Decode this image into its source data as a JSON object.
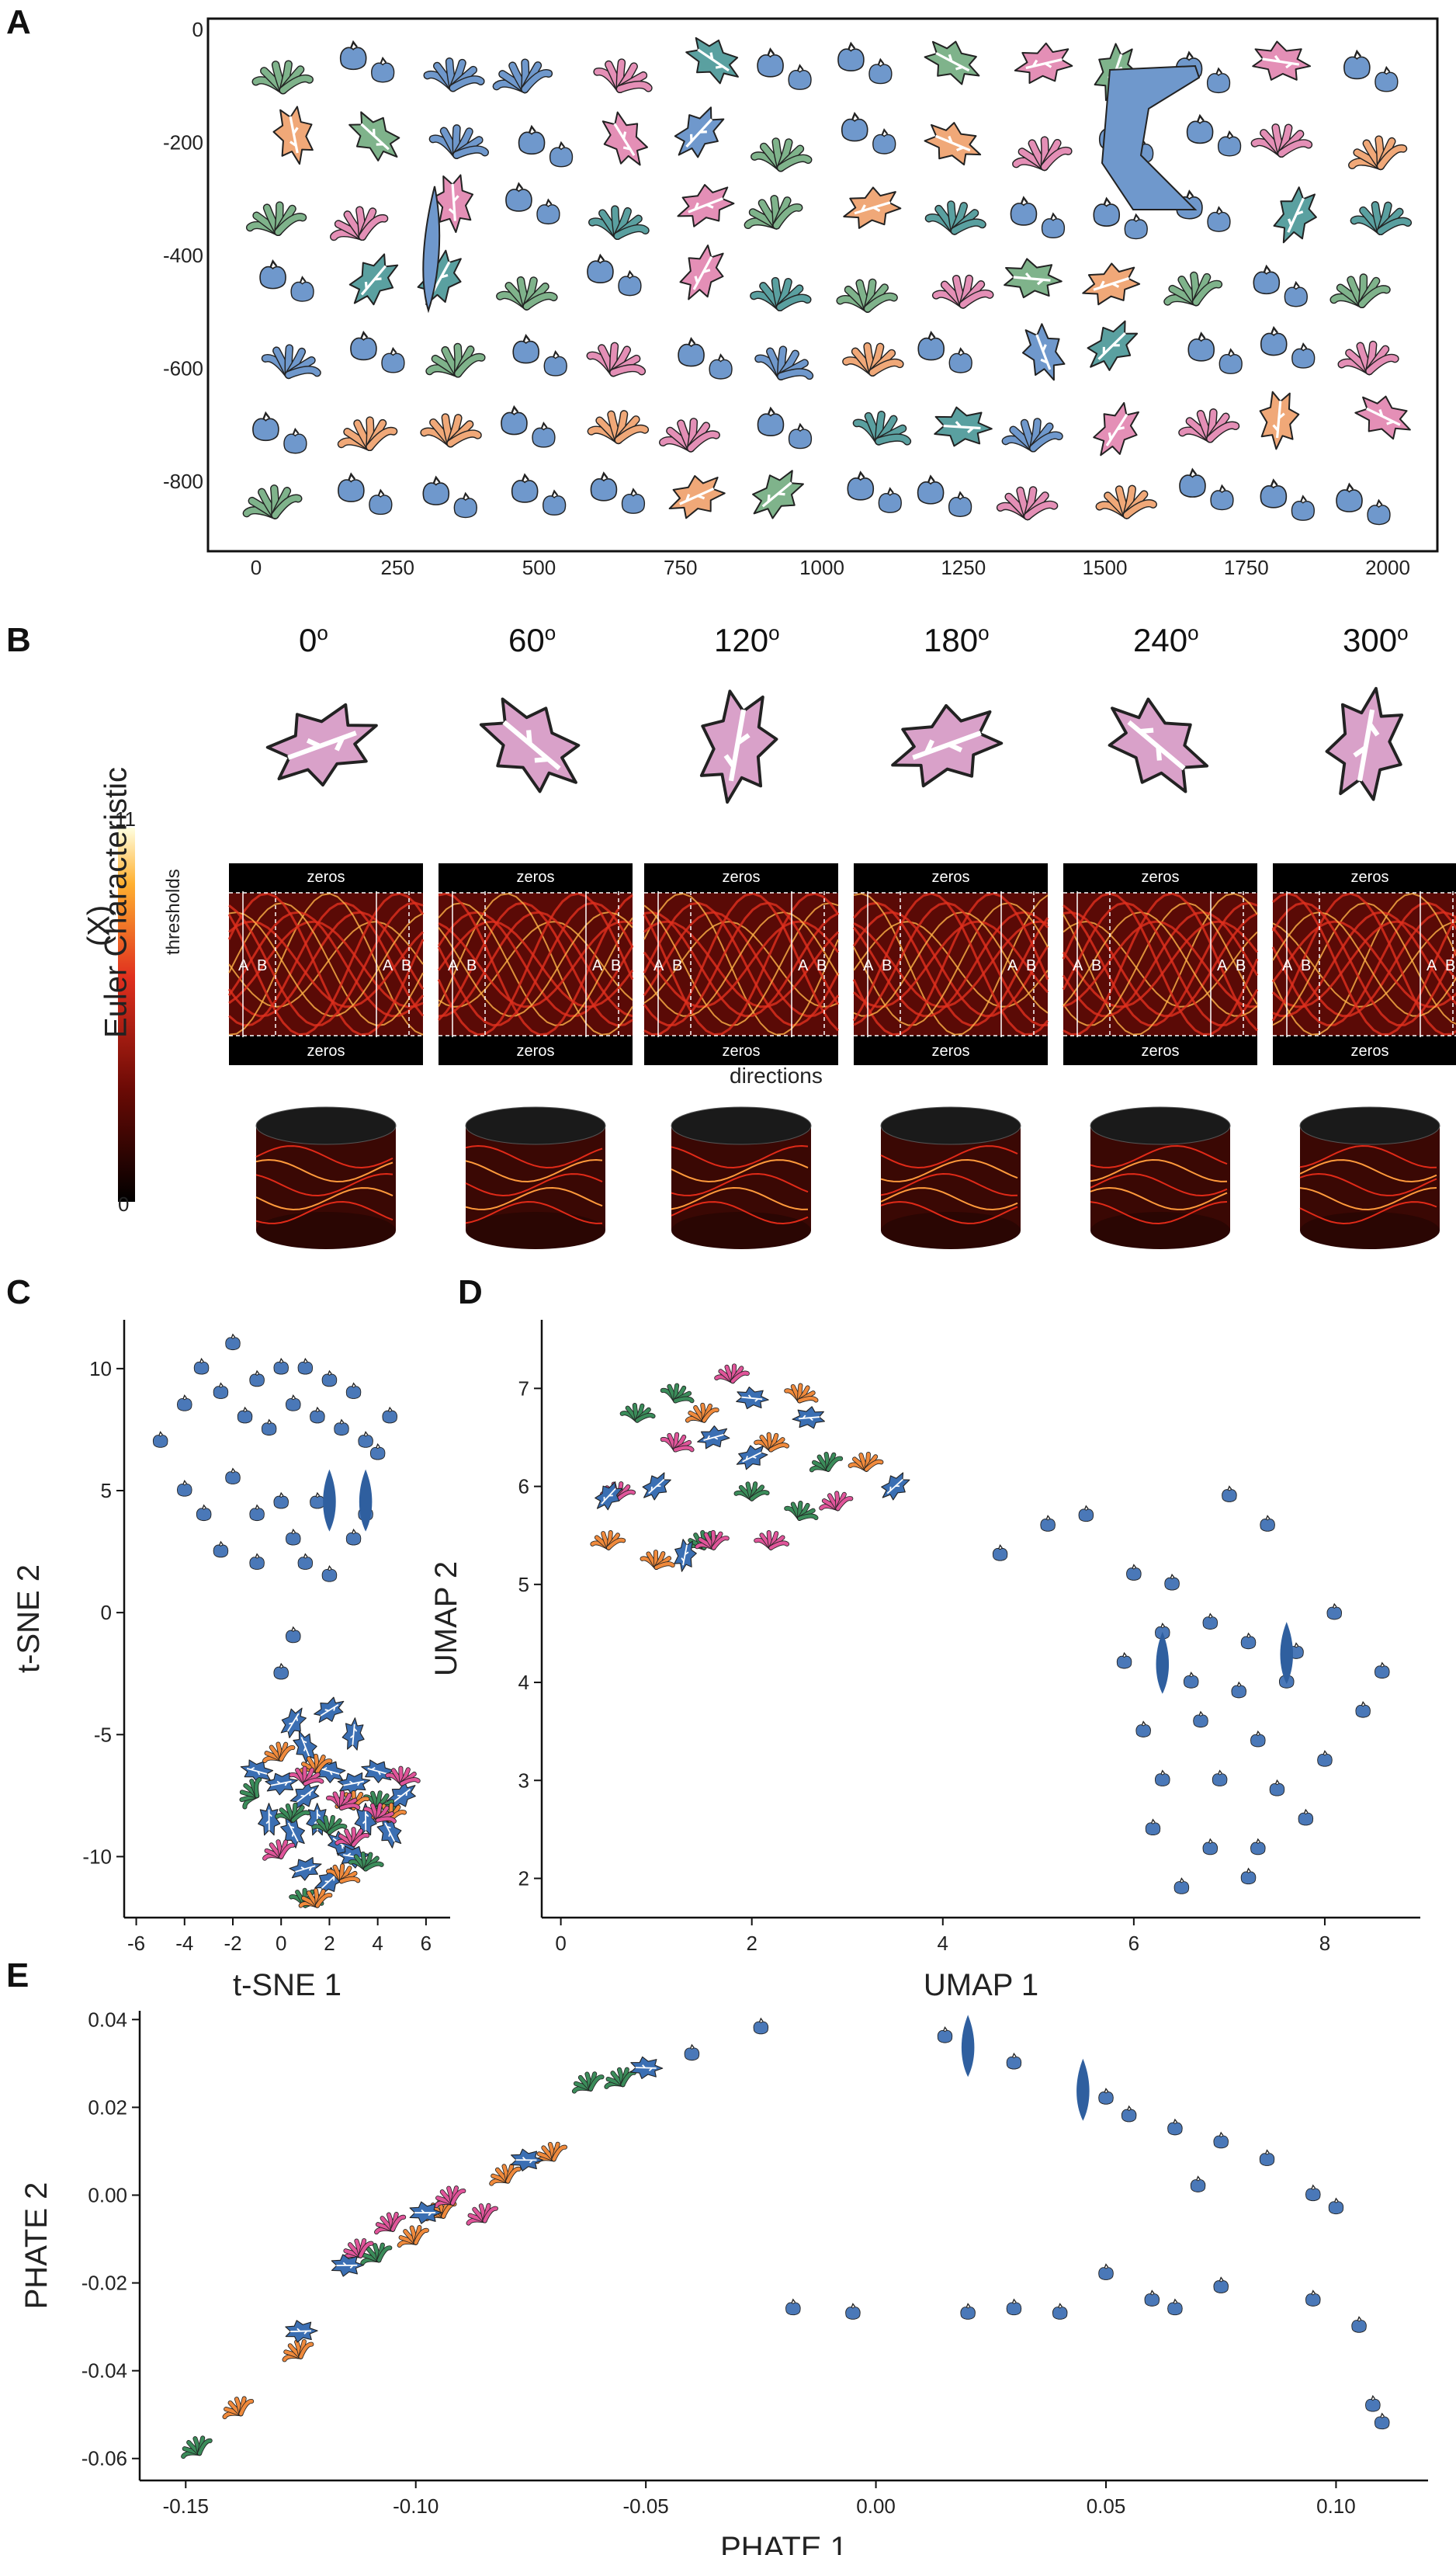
{
  "panels": {
    "a": {
      "letter": "A"
    },
    "b": {
      "letter": "B"
    },
    "c": {
      "letter": "C"
    },
    "d": {
      "letter": "D"
    },
    "e": {
      "letter": "E"
    }
  },
  "panel_a": {
    "x_ticks": [
      "0",
      "250",
      "500",
      "750",
      "1000",
      "1250",
      "1500",
      "1750",
      "2000"
    ],
    "y_ticks": [
      "0",
      "-200",
      "-400",
      "-600",
      "-800"
    ]
  },
  "panel_b": {
    "angles": [
      "0",
      "60",
      "120",
      "180",
      "240",
      "300"
    ],
    "degree_symbol": "o",
    "colorbar_label": "Euler Characteristic",
    "colorbar_sublabel": "(X)",
    "colorbar_max": "11",
    "colorbar_min": "0",
    "thresholds_label": "thresholds",
    "directions_label": "directions",
    "zeros_label": "zeros",
    "a_label": "A",
    "b_label": "B"
  },
  "chart_data": [
    {
      "type": "scatter",
      "title": "",
      "xlabel": "t-SNE 1",
      "ylabel": "t-SNE 2",
      "xlim": [
        -6.5,
        7
      ],
      "ylim": [
        -12.5,
        12
      ],
      "x_ticks": [
        "-6",
        "-4",
        "-2",
        "0",
        "2",
        "4",
        "6"
      ],
      "y_ticks": [
        "10",
        "5",
        "0",
        "-5",
        "-10"
      ],
      "series": [
        {
          "name": "round leaves",
          "color": "#4a78b8",
          "points": [
            [
              -5,
              7
            ],
            [
              -4,
              8.5
            ],
            [
              -3.3,
              10
            ],
            [
              -2.5,
              9
            ],
            [
              -2,
              11
            ],
            [
              -1.5,
              8
            ],
            [
              -1,
              9.5
            ],
            [
              -0.5,
              7.5
            ],
            [
              0,
              10
            ],
            [
              0.5,
              8.5
            ],
            [
              1,
              10
            ],
            [
              1.5,
              8
            ],
            [
              2,
              9.5
            ],
            [
              2.5,
              7.5
            ],
            [
              3,
              9
            ],
            [
              3.5,
              7
            ],
            [
              4,
              6.5
            ],
            [
              4.5,
              8
            ],
            [
              -4,
              5
            ],
            [
              -3.2,
              4
            ],
            [
              -2,
              5.5
            ],
            [
              -1,
              4
            ],
            [
              0,
              4.5
            ],
            [
              0.5,
              3
            ],
            [
              1.5,
              4.5
            ],
            [
              3,
              3
            ],
            [
              3.5,
              4
            ],
            [
              -1,
              2
            ],
            [
              1,
              2
            ],
            [
              2,
              1.5
            ],
            [
              -2.5,
              2.5
            ],
            [
              0.5,
              -1
            ],
            [
              0,
              -2.5
            ]
          ]
        },
        {
          "name": "elongated leaves",
          "color": "#2f5f9f",
          "points": [
            [
              2,
              4.6
            ],
            [
              3.5,
              4.6
            ]
          ]
        },
        {
          "name": "lobed leaves",
          "color": "#3b6fb3",
          "points": [
            [
              0.5,
              -4.5
            ],
            [
              1,
              -5.5
            ],
            [
              2,
              -4
            ],
            [
              3,
              -5
            ],
            [
              -1,
              -6.5
            ],
            [
              0,
              -7
            ],
            [
              1,
              -7.5
            ],
            [
              2,
              -6.5
            ],
            [
              3,
              -7
            ],
            [
              4,
              -6.5
            ],
            [
              5,
              -7.5
            ],
            [
              -0.5,
              -8.5
            ],
            [
              0.5,
              -9
            ],
            [
              1.5,
              -8.5
            ],
            [
              2.5,
              -9.5
            ],
            [
              3.5,
              -8.5
            ],
            [
              4.5,
              -9
            ],
            [
              1,
              -10.5
            ],
            [
              2,
              -11
            ],
            [
              3,
              -10
            ]
          ]
        },
        {
          "name": "fan leaves (green)",
          "color": "#3b8c5a",
          "points": [
            [
              -1,
              -7
            ],
            [
              0.5,
              -8
            ],
            [
              2,
              -8.5
            ],
            [
              3.5,
              -10
            ],
            [
              1,
              -11.5
            ],
            [
              4,
              -7.5
            ]
          ]
        },
        {
          "name": "fan leaves (orange)",
          "color": "#f08a3c",
          "points": [
            [
              0,
              -5.5
            ],
            [
              1.5,
              -6
            ],
            [
              2.5,
              -10.5
            ],
            [
              3,
              -7.5
            ],
            [
              1.5,
              -11.5
            ],
            [
              4.5,
              -8
            ]
          ]
        },
        {
          "name": "fan leaves (pink)",
          "color": "#e0559a",
          "points": [
            [
              1,
              -6.5
            ],
            [
              2.5,
              -7.5
            ],
            [
              4,
              -8
            ],
            [
              5,
              -6.5
            ],
            [
              0,
              -9.5
            ],
            [
              3,
              -9
            ]
          ]
        }
      ]
    },
    {
      "type": "scatter",
      "title": "",
      "xlabel": "UMAP 1",
      "ylabel": "UMAP 2",
      "xlim": [
        -0.2,
        9
      ],
      "ylim": [
        1.6,
        7.7
      ],
      "x_ticks": [
        "0",
        "2",
        "4",
        "6",
        "8"
      ],
      "y_ticks": [
        "7",
        "6",
        "5",
        "4",
        "3",
        "2"
      ],
      "series": [
        {
          "name": "fan leaves (orange)",
          "color": "#f08a3c",
          "points": [
            [
              0.5,
              5.5
            ],
            [
              1,
              5.3
            ],
            [
              1.5,
              6.8
            ],
            [
              2.2,
              6.5
            ],
            [
              3.2,
              6.3
            ],
            [
              2.5,
              7
            ]
          ]
        },
        {
          "name": "fan leaves (green)",
          "color": "#3b8c5a",
          "points": [
            [
              0.8,
              6.8
            ],
            [
              1.5,
              5.5
            ],
            [
              2,
              6
            ],
            [
              2.8,
              6.3
            ],
            [
              1.2,
              7
            ],
            [
              2.5,
              5.8
            ]
          ]
        },
        {
          "name": "fan leaves (pink)",
          "color": "#e0559a",
          "points": [
            [
              0.6,
              6
            ],
            [
              1.2,
              6.5
            ],
            [
              1.8,
              7.2
            ],
            [
              1.6,
              5.5
            ],
            [
              2.2,
              5.5
            ],
            [
              2.9,
              5.9
            ]
          ]
        },
        {
          "name": "lobed leaves",
          "color": "#3b6fb3",
          "points": [
            [
              0.5,
              5.9
            ],
            [
              1,
              6
            ],
            [
              1.6,
              6.5
            ],
            [
              2,
              6.9
            ],
            [
              2.6,
              6.7
            ],
            [
              3.5,
              6
            ],
            [
              1.3,
              5.3
            ],
            [
              2,
              6.3
            ]
          ]
        },
        {
          "name": "round leaves",
          "color": "#4a78b8",
          "points": [
            [
              4.6,
              5.3
            ],
            [
              5.1,
              5.6
            ],
            [
              5.5,
              5.7
            ],
            [
              6,
              5.1
            ],
            [
              6.4,
              5
            ],
            [
              7,
              5.9
            ],
            [
              7.4,
              5.6
            ],
            [
              6.3,
              4.5
            ],
            [
              6.8,
              4.6
            ],
            [
              7.2,
              4.4
            ],
            [
              7.7,
              4.3
            ],
            [
              8.1,
              4.7
            ],
            [
              8.6,
              4.1
            ],
            [
              5.9,
              4.2
            ],
            [
              6.6,
              4
            ],
            [
              7.1,
              3.9
            ],
            [
              7.6,
              4
            ],
            [
              8.4,
              3.7
            ],
            [
              6.1,
              3.5
            ],
            [
              6.7,
              3.6
            ],
            [
              7.3,
              3.4
            ],
            [
              6.3,
              3
            ],
            [
              6.9,
              3
            ],
            [
              7.5,
              2.9
            ],
            [
              8,
              3.2
            ],
            [
              6.2,
              2.5
            ],
            [
              6.8,
              2.3
            ],
            [
              7.3,
              2.3
            ],
            [
              7.8,
              2.6
            ],
            [
              6.5,
              1.9
            ],
            [
              7.2,
              2
            ]
          ]
        },
        {
          "name": "elongated leaves",
          "color": "#2f5f9f",
          "points": [
            [
              6.3,
              4.2
            ],
            [
              7.6,
              4.3
            ]
          ]
        }
      ]
    },
    {
      "type": "scatter",
      "title": "",
      "xlabel": "PHATE 1",
      "ylabel": "PHATE 2",
      "xlim": [
        -0.16,
        0.12
      ],
      "ylim": [
        -0.065,
        0.042
      ],
      "x_ticks": [
        "-0.15",
        "-0.10",
        "-0.05",
        "0.00",
        "0.05",
        "0.10"
      ],
      "y_ticks": [
        "0.04",
        "0.02",
        "0.00",
        "-0.02",
        "-0.04",
        "-0.06"
      ],
      "series": [
        {
          "name": "fan leaves (green)",
          "color": "#3b8c5a",
          "points": [
            [
              -0.147,
              -0.056
            ],
            [
              -0.108,
              -0.012
            ],
            [
              -0.055,
              0.028
            ],
            [
              -0.062,
              0.027
            ]
          ]
        },
        {
          "name": "fan leaves (orange)",
          "color": "#f08a3c",
          "points": [
            [
              -0.138,
              -0.047
            ],
            [
              -0.125,
              -0.034
            ],
            [
              -0.094,
              -0.002
            ],
            [
              -0.07,
              0.011
            ],
            [
              -0.08,
              0.006
            ],
            [
              -0.1,
              -0.008
            ]
          ]
        },
        {
          "name": "fan leaves (pink)",
          "color": "#e0559a",
          "points": [
            [
              -0.105,
              -0.005
            ],
            [
              -0.092,
              0.001
            ],
            [
              -0.085,
              -0.003
            ],
            [
              -0.112,
              -0.011
            ]
          ]
        },
        {
          "name": "lobed leaves",
          "color": "#3b6fb3",
          "points": [
            [
              -0.125,
              -0.031
            ],
            [
              -0.115,
              -0.016
            ],
            [
              -0.098,
              -0.004
            ],
            [
              -0.076,
              0.008
            ],
            [
              -0.05,
              0.029
            ]
          ]
        },
        {
          "name": "round leaves",
          "color": "#4a78b8",
          "points": [
            [
              -0.04,
              0.032
            ],
            [
              -0.025,
              0.038
            ],
            [
              0.015,
              0.036
            ],
            [
              0.03,
              0.03
            ],
            [
              0.05,
              0.022
            ],
            [
              0.055,
              0.018
            ],
            [
              0.065,
              0.015
            ],
            [
              0.075,
              0.012
            ],
            [
              0.085,
              0.008
            ],
            [
              0.07,
              0.002
            ],
            [
              0.095,
              0.0
            ],
            [
              0.1,
              -0.003
            ],
            [
              0.05,
              -0.018
            ],
            [
              0.06,
              -0.024
            ],
            [
              0.065,
              -0.026
            ],
            [
              0.075,
              -0.021
            ],
            [
              0.095,
              -0.024
            ],
            [
              0.105,
              -0.03
            ],
            [
              0.04,
              -0.027
            ],
            [
              0.02,
              -0.027
            ],
            [
              -0.005,
              -0.027
            ],
            [
              -0.018,
              -0.026
            ],
            [
              0.03,
              -0.026
            ],
            [
              0.11,
              -0.052
            ],
            [
              0.108,
              -0.048
            ]
          ]
        },
        {
          "name": "elongated leaves",
          "color": "#2f5f9f",
          "points": [
            [
              0.02,
              0.034
            ],
            [
              0.045,
              0.024
            ]
          ]
        }
      ]
    }
  ]
}
